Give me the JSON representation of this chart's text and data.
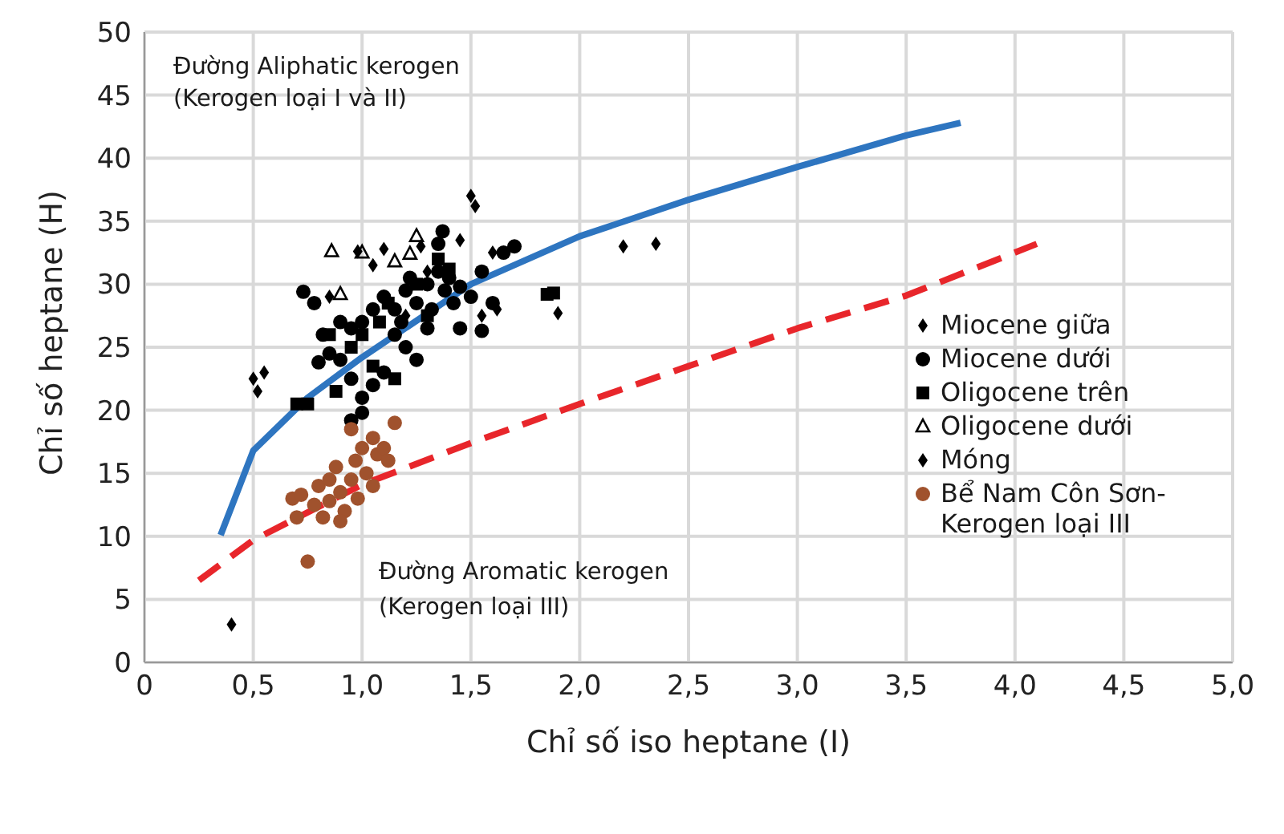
{
  "chart_data": {
    "type": "scatter",
    "xlabel": "Chỉ số iso heptane (I)",
    "ylabel": "Chỉ số heptane (H)",
    "xlim": [
      0,
      5
    ],
    "xticks": [
      0,
      {
        "value": 0.5,
        "label": "0,5"
      },
      {
        "value": 1,
        "label": "1,0"
      },
      {
        "value": 1.5,
        "label": "1,5"
      },
      {
        "value": 2,
        "label": "2,0"
      },
      {
        "value": 2.5,
        "label": "2,5"
      },
      {
        "value": 3,
        "label": "3,0"
      },
      {
        "value": 3.5,
        "label": "3,5"
      },
      {
        "value": 4,
        "label": "4,0"
      },
      {
        "value": 4.5,
        "label": "4,5"
      },
      {
        "value": 5,
        "label": "5,0"
      }
    ],
    "ylim": [
      0,
      50
    ],
    "yticks": [
      0,
      5,
      10,
      15,
      20,
      25,
      30,
      35,
      40,
      45,
      50
    ],
    "grid": true,
    "legend": "right",
    "annotations": [
      "Đường Aliphatic kerogen (Kerogen loại I và II)",
      "Đường Aromatic kerogen (Kerogen loại III)"
    ],
    "series": [
      {
        "type": "line",
        "color": "#2e75c0",
        "marker": "none",
        "line_style": "solid",
        "x": [
          0.35,
          0.5,
          0.75,
          1.0,
          1.5,
          2.0,
          2.5,
          3.0,
          3.5,
          3.75
        ],
        "values": [
          10.1,
          16.8,
          21,
          24.2,
          30,
          33.8,
          36.7,
          39.3,
          41.8,
          42.8
        ]
      },
      {
        "type": "line",
        "color": "#e8262b",
        "marker": "none",
        "line_style": "dashed",
        "x": [
          0.25,
          0.5,
          1.0,
          1.5,
          2.0,
          2.5,
          3.0,
          3.5,
          4.1
        ],
        "values": [
          6.5,
          9.7,
          14.1,
          17.4,
          20.5,
          23.5,
          26.5,
          29.1,
          33.2
        ]
      },
      {
        "name": "Miocene giữa",
        "color": "#000000",
        "marker": "diamond",
        "x": [
          0.5,
          0.52,
          0.55,
          1.5,
          1.52,
          2.2,
          2.35,
          1.9,
          1.45,
          1.6,
          1.05,
          1.1,
          1.3,
          0.85,
          1.2
        ],
        "values": [
          22.5,
          21.5,
          23,
          37,
          36.2,
          33,
          33.2,
          27.7,
          33.5,
          32.5,
          31.5,
          32.8,
          31,
          29,
          27.5
        ]
      },
      {
        "name": "Miocene dưới",
        "color": "#000000",
        "marker": "circle",
        "x": [
          0.73,
          0.78,
          1.37,
          1.35,
          0.8,
          0.85,
          0.9,
          0.95,
          1.0,
          1.05,
          0.82,
          0.9,
          0.95,
          1.0,
          1.05,
          1.1,
          1.15,
          1.2,
          1.22,
          1.25,
          1.3,
          1.32,
          1.35,
          1.38,
          1.4,
          1.42,
          1.45,
          1.5,
          1.55,
          1.6,
          1.65,
          1.7,
          1.15,
          1.2,
          1.25,
          1.1,
          1.18,
          1.3,
          1.45,
          1.55,
          1.0,
          0.95
        ],
        "values": [
          29.4,
          28.5,
          34.2,
          33.2,
          23.8,
          24.5,
          24,
          22.5,
          21,
          22,
          26,
          27,
          26.5,
          27,
          28,
          29,
          28,
          29.5,
          30.5,
          28.5,
          30,
          28,
          31,
          29.5,
          30.5,
          28.5,
          29.8,
          29,
          31,
          28.5,
          32.5,
          33,
          26,
          25,
          24,
          23,
          27,
          26.5,
          26.5,
          26.3,
          19.8,
          19.2
        ]
      },
      {
        "name": "Oligocene trên",
        "color": "#000000",
        "marker": "square",
        "x": [
          0.7,
          0.75,
          0.88,
          1.05,
          1.15,
          0.85,
          0.95,
          1.0,
          1.08,
          1.12,
          1.25,
          1.35,
          1.85,
          1.88,
          1.3,
          1.4
        ],
        "values": [
          20.5,
          20.5,
          21.5,
          23.5,
          22.5,
          26,
          25,
          26,
          27,
          28.5,
          30,
          32,
          29.2,
          29.3,
          27.5,
          31.2
        ]
      },
      {
        "name": "Oligocene dưới",
        "color": "#000000",
        "marker": "triangle",
        "x": [
          0.86,
          1.25,
          0.9,
          1.22,
          1.0,
          1.15
        ],
        "values": [
          32.6,
          33.8,
          29.2,
          32.4,
          32.5,
          31.8
        ]
      },
      {
        "name": "Móng",
        "color": "#000000",
        "marker": "diamond",
        "x": [
          0.4,
          0.98,
          1.27,
          1.55,
          1.62
        ],
        "values": [
          3,
          32.6,
          33,
          27.5,
          28
        ]
      },
      {
        "name": "Bể Nam Côn Sơn-Kerogen loại III",
        "color": "#a0522d",
        "marker": "circle",
        "x": [
          0.75,
          0.7,
          0.68,
          0.72,
          0.78,
          0.8,
          0.82,
          0.85,
          0.85,
          0.88,
          0.9,
          0.92,
          0.95,
          0.97,
          1.0,
          1.02,
          1.05,
          1.07,
          1.1,
          1.12,
          1.15,
          0.95,
          1.05,
          0.9,
          0.98
        ],
        "values": [
          8,
          11.5,
          13,
          13.3,
          12.5,
          14,
          11.5,
          12.8,
          14.5,
          15.5,
          13.5,
          12,
          14.5,
          16,
          17,
          15,
          14,
          16.5,
          17,
          16,
          19,
          18.5,
          17.8,
          11.2,
          13
        ]
      }
    ]
  }
}
